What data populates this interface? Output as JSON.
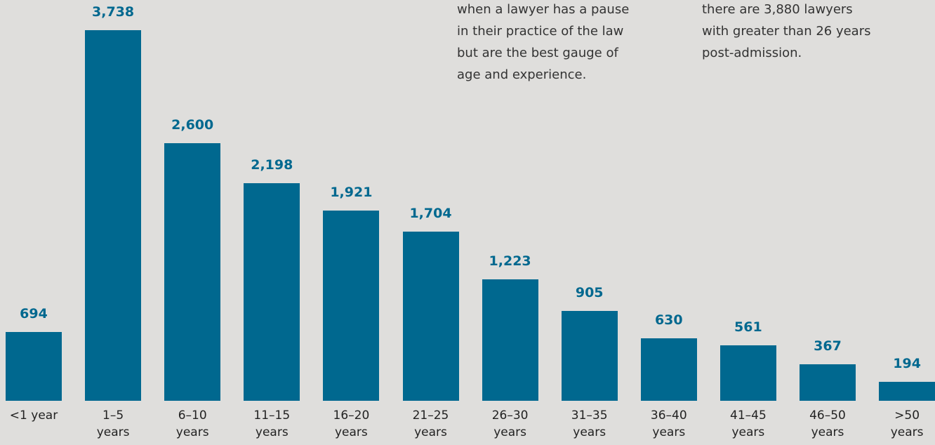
{
  "chart_data": {
    "type": "bar",
    "categories": [
      "<1 year",
      "1–5 years",
      "6–10 years",
      "11–15 years",
      "16–20 years",
      "21–25 years",
      "26–30 years",
      "31–35 years",
      "36–40 years",
      "41–45 years",
      "46–50 years",
      ">50 years"
    ],
    "values": [
      694,
      3738,
      2600,
      2198,
      1921,
      1704,
      1223,
      905,
      630,
      561,
      367,
      194
    ],
    "value_labels": [
      "694",
      "3,738",
      "2,600",
      "2,198",
      "1,921",
      "1,704",
      "1,223",
      "905",
      "630",
      "561",
      "367",
      "194"
    ],
    "color": "#00688f",
    "annotations": [
      [
        "when a lawyer has a pause",
        "in their practice of the law",
        "but are the best gauge of",
        "age and experience."
      ],
      [
        "there are 3,880 lawyers",
        "with greater than 26 years",
        "post-admission."
      ]
    ]
  }
}
